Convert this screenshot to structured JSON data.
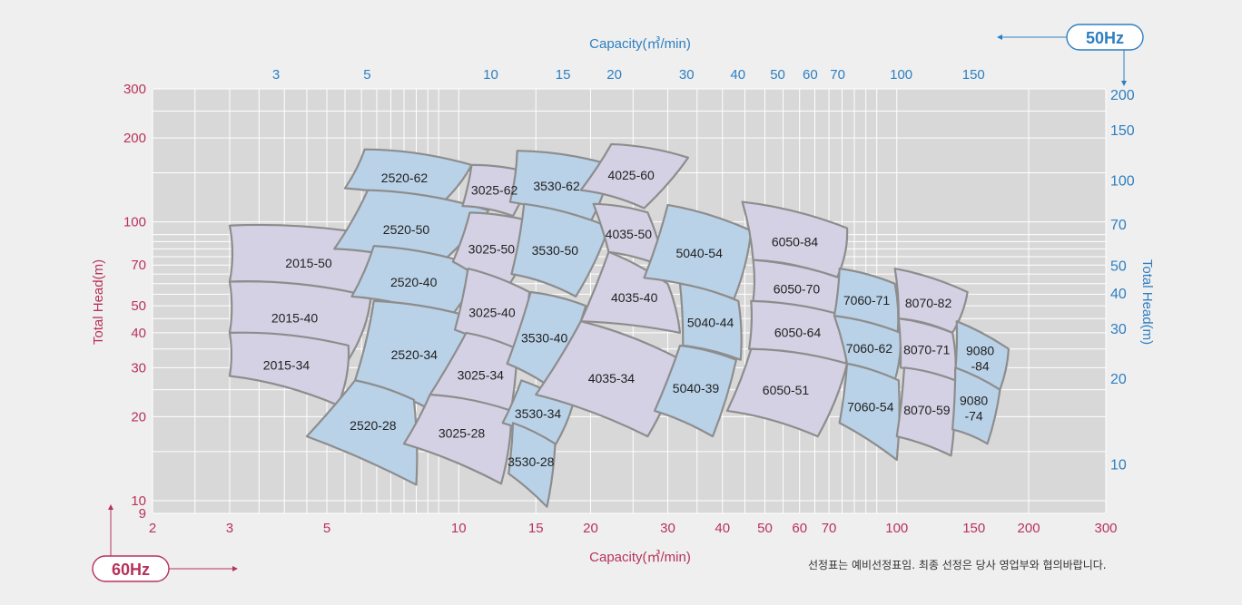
{
  "chart_data": {
    "type": "area",
    "x_scale": "log",
    "y_scale": "log",
    "bottom_axis": {
      "label": "Capacity(㎥/min)",
      "range": [
        2,
        300
      ],
      "ticks": [
        "2",
        "3",
        "5",
        "10",
        "15",
        "20",
        "30",
        "40",
        "50",
        "60",
        "70",
        "100",
        "150",
        "200",
        "300"
      ],
      "tick_values": [
        2,
        3,
        5,
        10,
        15,
        20,
        30,
        40,
        50,
        60,
        70,
        100,
        150,
        200,
        300
      ]
    },
    "top_axis": {
      "label": "Capacity(㎥/min)",
      "ticks": [
        "3",
        "5",
        "10",
        "15",
        "20",
        "30",
        "40",
        "50",
        "60",
        "70",
        "100",
        "150"
      ],
      "tick_values": [
        3,
        5,
        10,
        15,
        20,
        30,
        40,
        50,
        60,
        70,
        100,
        150
      ]
    },
    "left_axis": {
      "label": "Total Head(m)",
      "range": [
        9,
        300
      ],
      "ticks": [
        "9",
        "10",
        "20",
        "30",
        "40",
        "50",
        "70",
        "100",
        "200",
        "300"
      ],
      "tick_values": [
        9,
        10,
        20,
        30,
        40,
        50,
        70,
        100,
        200,
        300
      ]
    },
    "right_axis": {
      "label": "Total Head(m)",
      "ticks": [
        "10",
        "20",
        "30",
        "40",
        "50",
        "70",
        "100",
        "150",
        "200"
      ],
      "tick_values": [
        10,
        20,
        30,
        40,
        50,
        70,
        100,
        150,
        200
      ]
    },
    "badges": {
      "hz50": "50Hz",
      "hz60": "60Hz"
    },
    "grid": true,
    "colors": {
      "zone_lavender": "#d4d1e4",
      "zone_blue": "#b9d2e8",
      "zone_stroke": "#8d8d8d",
      "grid": "#ffffff",
      "plot_bg": "#d8d8d8",
      "hz50": "#2e7fc1",
      "hz60": "#b8325a"
    },
    "zones": [
      {
        "label": "2015-50",
        "color": "lavender",
        "corners": [
          [
            3.0,
            97
          ],
          [
            7.9,
            84
          ],
          [
            6.0,
            52
          ],
          [
            3.0,
            61
          ]
        ]
      },
      {
        "label": "2015-40",
        "color": "lavender",
        "corners": [
          [
            3.0,
            61
          ],
          [
            6.3,
            54
          ],
          [
            5.6,
            32
          ],
          [
            3.0,
            40
          ]
        ]
      },
      {
        "label": "2015-34",
        "color": "lavender",
        "corners": [
          [
            3.0,
            40
          ],
          [
            5.6,
            36
          ],
          [
            5.3,
            22
          ],
          [
            3.0,
            28
          ]
        ]
      },
      {
        "label": "2520-62",
        "color": "blue",
        "corners": [
          [
            6.1,
            182
          ],
          [
            10.7,
            160
          ],
          [
            8.9,
            112
          ],
          [
            5.5,
            132
          ]
        ]
      },
      {
        "label": "2520-50",
        "color": "blue",
        "corners": [
          [
            6.2,
            130
          ],
          [
            11.7,
            110
          ],
          [
            8.8,
            68
          ],
          [
            5.2,
            80
          ]
        ]
      },
      {
        "label": "2520-40",
        "color": "blue",
        "corners": [
          [
            6.4,
            82
          ],
          [
            11.2,
            69
          ],
          [
            9.5,
            45
          ],
          [
            5.7,
            54
          ]
        ]
      },
      {
        "label": "2520-34",
        "color": "blue",
        "corners": [
          [
            6.4,
            52
          ],
          [
            11.5,
            44
          ],
          [
            9.2,
            20
          ],
          [
            5.8,
            27
          ]
        ]
      },
      {
        "label": "2520-28",
        "color": "blue",
        "corners": [
          [
            5.8,
            27
          ],
          [
            7.9,
            23
          ],
          [
            8.0,
            11.4
          ],
          [
            4.5,
            17
          ]
        ]
      },
      {
        "label": "3025-62",
        "color": "lavender",
        "corners": [
          [
            10.7,
            160
          ],
          [
            14.6,
            150
          ],
          [
            13.3,
            105
          ],
          [
            10.2,
            114
          ]
        ]
      },
      {
        "label": "3025-50",
        "color": "lavender",
        "corners": [
          [
            10.6,
            108
          ],
          [
            15.5,
            98
          ],
          [
            12.5,
            54
          ],
          [
            9.7,
            72
          ]
        ]
      },
      {
        "label": "3025-40",
        "color": "lavender",
        "corners": [
          [
            10.5,
            68
          ],
          [
            14.5,
            56
          ],
          [
            13.5,
            32
          ],
          [
            9.8,
            41
          ]
        ]
      },
      {
        "label": "3025-34",
        "color": "lavender",
        "corners": [
          [
            10.4,
            40
          ],
          [
            13.6,
            35
          ],
          [
            13.0,
            19
          ],
          [
            8.6,
            24
          ]
        ]
      },
      {
        "label": "3025-28",
        "color": "lavender",
        "corners": [
          [
            8.6,
            24
          ],
          [
            13.2,
            21
          ],
          [
            12.5,
            11.5
          ],
          [
            7.5,
            16
          ]
        ]
      },
      {
        "label": "3530-62",
        "color": "blue",
        "corners": [
          [
            13.6,
            180
          ],
          [
            22.3,
            160
          ],
          [
            19.7,
            96
          ],
          [
            13.1,
            118
          ]
        ]
      },
      {
        "label": "3530-50",
        "color": "blue",
        "corners": [
          [
            14.1,
            116
          ],
          [
            22.0,
            96
          ],
          [
            18.5,
            54
          ],
          [
            13.2,
            65
          ]
        ]
      },
      {
        "label": "3530-40",
        "color": "blue",
        "corners": [
          [
            14.6,
            56
          ],
          [
            19.5,
            50
          ],
          [
            16.5,
            25
          ],
          [
            12.9,
            31
          ]
        ]
      },
      {
        "label": "3530-34",
        "color": "blue",
        "corners": [
          [
            13.9,
            27
          ],
          [
            18.2,
            22
          ],
          [
            16.6,
            15.8
          ],
          [
            12.6,
            19
          ]
        ]
      },
      {
        "label": "3530-28",
        "color": "blue",
        "corners": [
          [
            13.3,
            19
          ],
          [
            16.6,
            16
          ],
          [
            15.9,
            9.5
          ],
          [
            13.0,
            12.5
          ]
        ]
      },
      {
        "label": "4025-60",
        "color": "lavender",
        "corners": [
          [
            22.3,
            190
          ],
          [
            33.4,
            170
          ],
          [
            26.5,
            112
          ],
          [
            19.0,
            130
          ]
        ]
      },
      {
        "label": "4035-50",
        "color": "lavender",
        "corners": [
          [
            20.3,
            116
          ],
          [
            27.0,
            108
          ],
          [
            29.5,
            69
          ],
          [
            22.0,
            78
          ]
        ]
      },
      {
        "label": "4035-40",
        "color": "lavender",
        "corners": [
          [
            22.0,
            78
          ],
          [
            30.0,
            60
          ],
          [
            32.0,
            40
          ],
          [
            19.0,
            44
          ]
        ]
      },
      {
        "label": "4035-34",
        "color": "lavender",
        "corners": [
          [
            19.0,
            44
          ],
          [
            32.2,
            32
          ],
          [
            27.0,
            17
          ],
          [
            15.0,
            24
          ]
        ]
      },
      {
        "label": "5040-54",
        "color": "blue",
        "corners": [
          [
            30.0,
            115
          ],
          [
            46.5,
            93
          ],
          [
            42.5,
            53
          ],
          [
            26.5,
            63
          ]
        ]
      },
      {
        "label": "5040-44",
        "color": "blue",
        "corners": [
          [
            32.0,
            60
          ],
          [
            43.5,
            52
          ],
          [
            44.0,
            32
          ],
          [
            32.5,
            36
          ]
        ]
      },
      {
        "label": "5040-39",
        "color": "blue",
        "corners": [
          [
            32.0,
            36
          ],
          [
            43.0,
            32
          ],
          [
            38.0,
            17
          ],
          [
            28.0,
            21
          ]
        ]
      },
      {
        "label": "6050-84",
        "color": "lavender",
        "corners": [
          [
            44.4,
            118
          ],
          [
            77.0,
            95
          ],
          [
            73.0,
            63
          ],
          [
            47.0,
            73
          ]
        ]
      },
      {
        "label": "6050-70",
        "color": "lavender",
        "corners": [
          [
            47.0,
            73
          ],
          [
            74.0,
            63
          ],
          [
            74.5,
            46
          ],
          [
            47.0,
            52
          ]
        ]
      },
      {
        "label": "6050-64",
        "color": "lavender",
        "corners": [
          [
            46.5,
            52
          ],
          [
            76.0,
            46
          ],
          [
            76.5,
            31
          ],
          [
            46.0,
            35
          ]
        ]
      },
      {
        "label": "6050-51",
        "color": "lavender",
        "corners": [
          [
            46.5,
            35
          ],
          [
            77.0,
            31
          ],
          [
            66.0,
            17
          ],
          [
            41.0,
            21
          ]
        ]
      },
      {
        "label": "7060-71",
        "color": "blue",
        "corners": [
          [
            74.0,
            68
          ],
          [
            99.0,
            60
          ],
          [
            100.5,
            40
          ],
          [
            72.0,
            46
          ]
        ]
      },
      {
        "label": "7060-62",
        "color": "blue",
        "corners": [
          [
            72.0,
            46
          ],
          [
            102.0,
            40
          ],
          [
            99.0,
            27
          ],
          [
            77.0,
            31
          ]
        ]
      },
      {
        "label": "7060-54",
        "color": "blue",
        "corners": [
          [
            77.0,
            31
          ],
          [
            101.0,
            27
          ],
          [
            100.0,
            14
          ],
          [
            74.0,
            19
          ]
        ]
      },
      {
        "label": "8070-82",
        "color": "lavender",
        "corners": [
          [
            99.0,
            68
          ],
          [
            145.0,
            56
          ],
          [
            134.0,
            40
          ],
          [
            101.0,
            45
          ]
        ]
      },
      {
        "label": "8070-71",
        "color": "lavender",
        "corners": [
          [
            101.0,
            45
          ],
          [
            134.0,
            40
          ],
          [
            136.0,
            27
          ],
          [
            102.0,
            30
          ]
        ]
      },
      {
        "label": "8070-59",
        "color": "lavender",
        "corners": [
          [
            104.0,
            30
          ],
          [
            136.0,
            27
          ],
          [
            133.0,
            14.5
          ],
          [
            100.0,
            17
          ]
        ]
      },
      {
        "label": "9080\n-84",
        "color": "blue",
        "corners": [
          [
            137.0,
            44
          ],
          [
            180.0,
            35
          ],
          [
            172.0,
            25
          ],
          [
            136.0,
            29
          ]
        ]
      },
      {
        "label": "9080\n-74",
        "color": "blue",
        "corners": [
          [
            136.0,
            30
          ],
          [
            172.0,
            25
          ],
          [
            161.0,
            16
          ],
          [
            134.0,
            18
          ]
        ]
      }
    ]
  },
  "footnote": "선정표는 예비선정표임. 최종 선정은 당사 영업부와 협의바랍니다."
}
